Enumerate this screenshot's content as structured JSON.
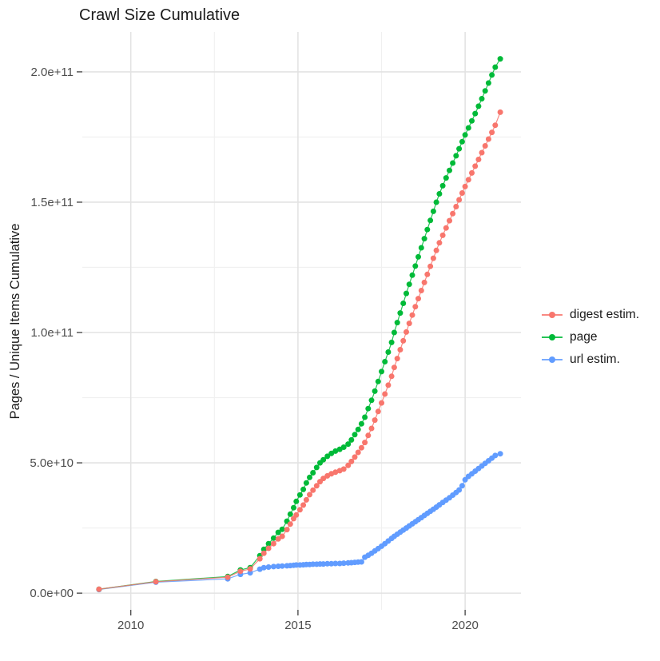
{
  "chart_data": {
    "type": "line",
    "title": "Crawl Size Cumulative",
    "xlabel": "",
    "ylabel": "Pages / Unique Items Cumulative",
    "y_unit": "1e10",
    "grid": true,
    "legend_position": "right",
    "x_domain": [
      2008.55,
      2021.67
    ],
    "y_domain": [
      -0.64,
      21.53
    ],
    "x_ticks": {
      "values": [
        2010,
        2015,
        2020
      ],
      "labels": [
        "2010",
        "2015",
        "2020"
      ]
    },
    "y_ticks": {
      "values": [
        0,
        5,
        10,
        15,
        20
      ],
      "labels": [
        "0.0e+00",
        "5.0e+10",
        "1.0e+11",
        "1.5e+11",
        "2.0e+11"
      ]
    },
    "x_minor": [
      2012.5,
      2017.5
    ],
    "y_minor": [
      2.5,
      7.5,
      12.5,
      17.5
    ],
    "x": [
      2009.05,
      2010.75,
      2012.9,
      2013.28,
      2013.57,
      2013.86,
      2013.98,
      2014.12,
      2014.27,
      2014.41,
      2014.53,
      2014.67,
      2014.77,
      2014.87,
      2014.95,
      2015.06,
      2015.16,
      2015.25,
      2015.35,
      2015.45,
      2015.56,
      2015.66,
      2015.76,
      2015.88,
      2016.0,
      2016.12,
      2016.25,
      2016.37,
      2016.5,
      2016.6,
      2016.7,
      2016.8,
      2016.9,
      2017.0,
      2017.1,
      2017.2,
      2017.3,
      2017.4,
      2017.5,
      2017.6,
      2017.7,
      2017.8,
      2017.88,
      2017.97,
      2018.06,
      2018.15,
      2018.24,
      2018.33,
      2018.42,
      2018.51,
      2018.6,
      2018.69,
      2018.78,
      2018.87,
      2018.96,
      2019.05,
      2019.14,
      2019.23,
      2019.33,
      2019.43,
      2019.53,
      2019.63,
      2019.73,
      2019.82,
      2019.91,
      2020.0,
      2020.1,
      2020.2,
      2020.3,
      2020.4,
      2020.5,
      2020.6,
      2020.7,
      2020.8,
      2020.9,
      2021.05
    ],
    "series": [
      {
        "name": "digest estim.",
        "color": "#F8766D",
        "values": [
          0.15,
          0.44,
          0.61,
          0.84,
          0.93,
          1.32,
          1.53,
          1.72,
          1.9,
          2.08,
          2.18,
          2.44,
          2.65,
          2.86,
          3.0,
          3.2,
          3.38,
          3.58,
          3.78,
          3.95,
          4.12,
          4.28,
          4.4,
          4.5,
          4.58,
          4.64,
          4.7,
          4.76,
          4.9,
          5.05,
          5.22,
          5.4,
          5.58,
          5.78,
          6.05,
          6.32,
          6.64,
          6.97,
          7.3,
          7.64,
          7.98,
          8.32,
          8.66,
          9.0,
          9.34,
          9.68,
          10.02,
          10.35,
          10.67,
          10.99,
          11.3,
          11.61,
          11.92,
          12.23,
          12.54,
          12.85,
          13.15,
          13.44,
          13.73,
          14.01,
          14.29,
          14.56,
          14.83,
          15.09,
          15.35,
          15.6,
          15.86,
          16.12,
          16.38,
          16.64,
          16.9,
          17.16,
          17.42,
          17.68,
          17.95,
          18.45
        ]
      },
      {
        "name": "page",
        "color": "#00BA38",
        "values": [
          0.15,
          0.45,
          0.64,
          0.89,
          0.98,
          1.44,
          1.68,
          1.9,
          2.11,
          2.33,
          2.45,
          2.76,
          3.03,
          3.28,
          3.52,
          3.77,
          3.98,
          4.23,
          4.44,
          4.62,
          4.82,
          5.0,
          5.12,
          5.25,
          5.36,
          5.45,
          5.52,
          5.6,
          5.72,
          5.88,
          6.08,
          6.28,
          6.5,
          6.75,
          7.08,
          7.4,
          7.75,
          8.12,
          8.5,
          8.88,
          9.25,
          9.62,
          10.0,
          10.38,
          10.75,
          11.12,
          11.5,
          11.85,
          12.2,
          12.55,
          12.9,
          13.25,
          13.6,
          13.95,
          14.3,
          14.65,
          15.0,
          15.32,
          15.63,
          15.93,
          16.22,
          16.5,
          16.78,
          17.05,
          17.32,
          17.58,
          17.85,
          18.12,
          18.4,
          18.68,
          18.97,
          19.27,
          19.57,
          19.88,
          20.18,
          20.5
        ]
      },
      {
        "name": "url estim.",
        "color": "#619CFF",
        "values": [
          0.14,
          0.42,
          0.55,
          0.72,
          0.78,
          0.92,
          0.98,
          1.0,
          1.02,
          1.03,
          1.04,
          1.05,
          1.06,
          1.07,
          1.08,
          1.08,
          1.09,
          1.1,
          1.1,
          1.11,
          1.11,
          1.12,
          1.12,
          1.13,
          1.13,
          1.14,
          1.14,
          1.15,
          1.16,
          1.17,
          1.18,
          1.19,
          1.2,
          1.38,
          1.45,
          1.53,
          1.62,
          1.71,
          1.8,
          1.9,
          2.0,
          2.1,
          2.18,
          2.26,
          2.34,
          2.42,
          2.5,
          2.58,
          2.66,
          2.74,
          2.82,
          2.9,
          2.98,
          3.06,
          3.14,
          3.22,
          3.3,
          3.39,
          3.48,
          3.57,
          3.66,
          3.76,
          3.86,
          3.96,
          4.12,
          4.35,
          4.48,
          4.58,
          4.68,
          4.78,
          4.88,
          4.98,
          5.08,
          5.18,
          5.28,
          5.35
        ]
      }
    ],
    "draw_order": [
      2,
      1,
      0
    ],
    "style": {
      "major_grid_color": "#e3e3e3",
      "minor_grid_color": "#f0f0f0",
      "tick_color": "#4d4d4d",
      "tick_label_color": "#4d4d4d",
      "text_color": "#1a1a1a",
      "background": "#ffffff"
    }
  }
}
